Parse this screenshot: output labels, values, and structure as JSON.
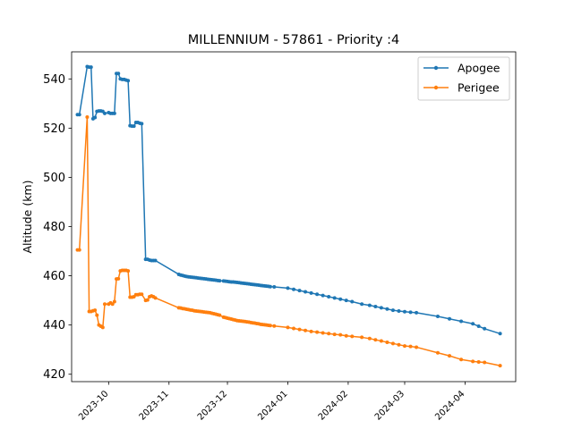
{
  "chart_data": {
    "type": "line",
    "title": "MILLENNIUM - 57861 - Priority :4",
    "xlabel": "",
    "ylabel": "Altitude (km)",
    "xlim": [
      "2023-09-12",
      "2024-04-27"
    ],
    "ylim": [
      417,
      551
    ],
    "x_ticks": [
      "2023-10",
      "2023-11",
      "2023-12",
      "2024-01",
      "2024-02",
      "2024-03",
      "2024-04"
    ],
    "y_ticks": [
      420,
      440,
      460,
      480,
      500,
      520,
      540
    ],
    "grid": false,
    "legend_position": "top-right",
    "series": [
      {
        "name": "Apogee",
        "color": "#1f77b4",
        "x": [
          "2023-09-15",
          "2023-09-16",
          "2023-09-20",
          "2023-09-21",
          "2023-09-22",
          "2023-09-23",
          "2023-09-24",
          "2023-09-25",
          "2023-09-26",
          "2023-09-27",
          "2023-09-28",
          "2023-09-29",
          "2023-10-01",
          "2023-10-02",
          "2023-10-03",
          "2023-10-04",
          "2023-10-05",
          "2023-10-06",
          "2023-10-07",
          "2023-10-08",
          "2023-10-09",
          "2023-10-10",
          "2023-10-11",
          "2023-10-12",
          "2023-10-13",
          "2023-10-14",
          "2023-10-15",
          "2023-10-16",
          "2023-10-17",
          "2023-10-18",
          "2023-10-20",
          "2023-10-21",
          "2023-10-22",
          "2023-10-23",
          "2023-10-24",
          "2023-10-25",
          "2023-11-06",
          "2023-11-07",
          "2023-11-08",
          "2023-11-09",
          "2023-11-10",
          "2023-11-11",
          "2023-11-12",
          "2023-11-13",
          "2023-11-14",
          "2023-11-15",
          "2023-11-16",
          "2023-11-17",
          "2023-11-18",
          "2023-11-19",
          "2023-11-20",
          "2023-11-21",
          "2023-11-22",
          "2023-11-23",
          "2023-11-24",
          "2023-11-25",
          "2023-11-26",
          "2023-11-27",
          "2023-11-29",
          "2023-11-30",
          "2023-12-01",
          "2023-12-02",
          "2023-12-03",
          "2023-12-04",
          "2023-12-05",
          "2023-12-06",
          "2023-12-07",
          "2023-12-08",
          "2023-12-09",
          "2023-12-10",
          "2023-12-11",
          "2023-12-12",
          "2023-12-13",
          "2023-12-14",
          "2023-12-15",
          "2023-12-16",
          "2023-12-17",
          "2023-12-18",
          "2023-12-19",
          "2023-12-20",
          "2023-12-21",
          "2023-12-22",
          "2023-12-23",
          "2023-12-25",
          "2024-01-01",
          "2024-01-04",
          "2024-01-07",
          "2024-01-10",
          "2024-01-13",
          "2024-01-16",
          "2024-01-19",
          "2024-01-22",
          "2024-01-25",
          "2024-01-28",
          "2024-01-31",
          "2024-02-03",
          "2024-02-08",
          "2024-02-12",
          "2024-02-15",
          "2024-02-18",
          "2024-02-21",
          "2024-02-24",
          "2024-02-27",
          "2024-03-01",
          "2024-03-04",
          "2024-03-07",
          "2024-03-18",
          "2024-03-24",
          "2024-03-30",
          "2024-04-05",
          "2024-04-08",
          "2024-04-11",
          "2024-04-19"
        ],
        "values": [
          525.5,
          525.5,
          545,
          544.8,
          544.8,
          523.8,
          524.3,
          526.8,
          527,
          527,
          526.8,
          526,
          526.3,
          526,
          526,
          526,
          542.2,
          542.2,
          540,
          539.8,
          539.8,
          539.5,
          539.3,
          521,
          520.8,
          520.8,
          522.3,
          522.3,
          522,
          521.8,
          466.7,
          466.7,
          466.4,
          466.2,
          466.2,
          466.2,
          460.6,
          460.3,
          460.1,
          459.9,
          459.7,
          459.6,
          459.5,
          459.4,
          459.3,
          459.2,
          459.1,
          459,
          458.9,
          458.8,
          458.7,
          458.6,
          458.5,
          458.4,
          458.3,
          458.2,
          458.1,
          458,
          457.9,
          457.8,
          457.7,
          457.6,
          457.5,
          457.5,
          457.4,
          457.3,
          457.2,
          457.1,
          457,
          456.9,
          456.8,
          456.7,
          456.6,
          456.5,
          456.4,
          456.3,
          456.2,
          456.1,
          456,
          455.9,
          455.8,
          455.7,
          455.6,
          455.5,
          455,
          454.5,
          454,
          453.5,
          453,
          452.5,
          452,
          451.5,
          451,
          450.5,
          450,
          449.5,
          448.5,
          448,
          447.5,
          447,
          446.5,
          446,
          445.7,
          445.4,
          445.2,
          445,
          443.5,
          442.5,
          441.5,
          440.5,
          439.5,
          438.5,
          436.5
        ]
      },
      {
        "name": "Perigee",
        "color": "#ff7f0e",
        "x": [
          "2023-09-15",
          "2023-09-16",
          "2023-09-20",
          "2023-09-21",
          "2023-09-22",
          "2023-09-23",
          "2023-09-24",
          "2023-09-25",
          "2023-09-26",
          "2023-09-27",
          "2023-09-28",
          "2023-09-29",
          "2023-10-01",
          "2023-10-02",
          "2023-10-03",
          "2023-10-04",
          "2023-10-05",
          "2023-10-06",
          "2023-10-07",
          "2023-10-08",
          "2023-10-09",
          "2023-10-10",
          "2023-10-11",
          "2023-10-12",
          "2023-10-13",
          "2023-10-14",
          "2023-10-15",
          "2023-10-16",
          "2023-10-17",
          "2023-10-18",
          "2023-10-20",
          "2023-10-21",
          "2023-10-22",
          "2023-10-23",
          "2023-10-24",
          "2023-10-25",
          "2023-11-06",
          "2023-11-07",
          "2023-11-08",
          "2023-11-09",
          "2023-11-10",
          "2023-11-11",
          "2023-11-12",
          "2023-11-13",
          "2023-11-14",
          "2023-11-15",
          "2023-11-16",
          "2023-11-17",
          "2023-11-18",
          "2023-11-19",
          "2023-11-20",
          "2023-11-21",
          "2023-11-22",
          "2023-11-23",
          "2023-11-24",
          "2023-11-25",
          "2023-11-26",
          "2023-11-27",
          "2023-11-29",
          "2023-11-30",
          "2023-12-01",
          "2023-12-02",
          "2023-12-03",
          "2023-12-04",
          "2023-12-05",
          "2023-12-06",
          "2023-12-07",
          "2023-12-08",
          "2023-12-09",
          "2023-12-10",
          "2023-12-11",
          "2023-12-12",
          "2023-12-13",
          "2023-12-14",
          "2023-12-15",
          "2023-12-16",
          "2023-12-17",
          "2023-12-18",
          "2023-12-19",
          "2023-12-20",
          "2023-12-21",
          "2023-12-22",
          "2023-12-23",
          "2023-12-25",
          "2024-01-01",
          "2024-01-04",
          "2024-01-07",
          "2024-01-10",
          "2024-01-13",
          "2024-01-16",
          "2024-01-19",
          "2024-01-22",
          "2024-01-25",
          "2024-01-28",
          "2024-01-31",
          "2024-02-03",
          "2024-02-08",
          "2024-02-12",
          "2024-02-15",
          "2024-02-18",
          "2024-02-21",
          "2024-02-24",
          "2024-02-27",
          "2024-03-01",
          "2024-03-04",
          "2024-03-07",
          "2024-03-18",
          "2024-03-24",
          "2024-03-30",
          "2024-04-05",
          "2024-04-08",
          "2024-04-11",
          "2024-04-19"
        ],
        "values": [
          470.5,
          470.5,
          524.5,
          445.5,
          445.5,
          445.8,
          446,
          444,
          440,
          439.5,
          439,
          448.5,
          448.5,
          449,
          448.5,
          449.5,
          458.7,
          458.8,
          462,
          462.2,
          462.2,
          462.2,
          462,
          451.3,
          451.3,
          451.5,
          452.3,
          452.3,
          452.5,
          452.5,
          450,
          450.2,
          451.5,
          451.8,
          451.5,
          451,
          447,
          446.9,
          446.7,
          446.6,
          446.4,
          446.3,
          446.1,
          446,
          445.8,
          445.7,
          445.6,
          445.5,
          445.4,
          445.3,
          445.2,
          445.1,
          445,
          444.8,
          444.6,
          444.4,
          444.2,
          444,
          443.2,
          443,
          442.8,
          442.6,
          442.4,
          442.2,
          442,
          441.8,
          441.7,
          441.6,
          441.5,
          441.4,
          441.3,
          441.2,
          441,
          440.9,
          440.8,
          440.6,
          440.5,
          440.3,
          440.2,
          440.1,
          440,
          439.9,
          439.8,
          439.6,
          439,
          438.6,
          438.2,
          437.8,
          437.4,
          437.1,
          436.8,
          436.5,
          436.2,
          436,
          435.6,
          435.4,
          435,
          434.5,
          434,
          433.5,
          433,
          432.5,
          432,
          431.5,
          431.3,
          431,
          428.7,
          427.5,
          426,
          425.2,
          425,
          424.8,
          423.5
        ]
      }
    ]
  }
}
